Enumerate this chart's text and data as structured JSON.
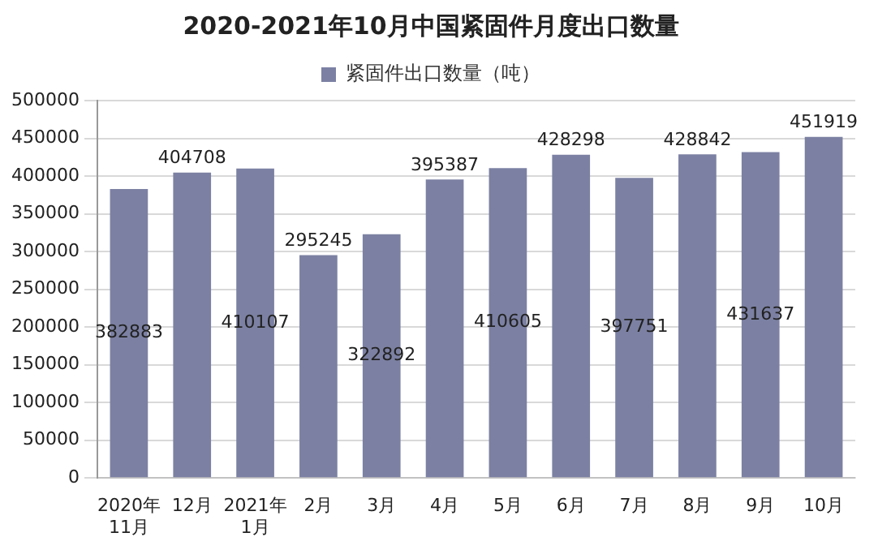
{
  "chart_data": {
    "type": "bar",
    "title": "2020-2021年10月中国紧固件月度出口数量",
    "categories": [
      "2020年\n11月",
      "12月",
      "2021年\n1月",
      "2月",
      "3月",
      "4月",
      "5月",
      "6月",
      "7月",
      "8月",
      "9月",
      "10月"
    ],
    "series": [
      {
        "name": "紧固件出口数量（吨）",
        "color": "#7c81a3",
        "values": [
          382883,
          404708,
          410107,
          295245,
          322892,
          395387,
          410605,
          428298,
          397751,
          428842,
          431637,
          451919
        ]
      }
    ],
    "ylim": [
      0,
      500000
    ],
    "yticks": [
      0,
      50000,
      100000,
      150000,
      200000,
      250000,
      300000,
      350000,
      400000,
      450000,
      500000
    ],
    "grid": "y",
    "legend": "top",
    "data_labels": true
  }
}
